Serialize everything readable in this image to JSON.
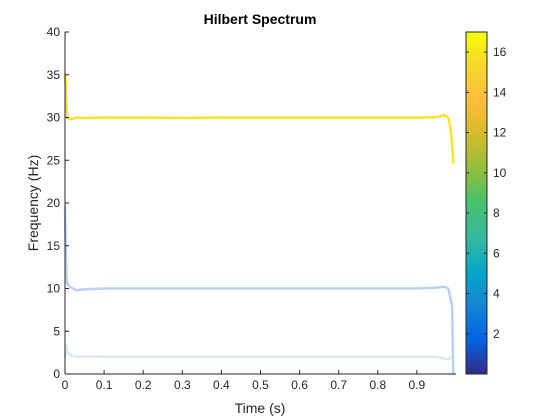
{
  "chart_data": {
    "type": "line",
    "title": "Hilbert Spectrum",
    "xlabel": "Time (s)",
    "ylabel": "Frequency (Hz)",
    "xlim": [
      0,
      1.0
    ],
    "ylim": [
      0,
      40
    ],
    "xticks": [
      "0",
      "0.1",
      "0.2",
      "0.3",
      "0.4",
      "0.5",
      "0.6",
      "0.7",
      "0.8",
      "0.9"
    ],
    "yticks": [
      "0",
      "5",
      "10",
      "15",
      "20",
      "25",
      "30",
      "35",
      "40"
    ],
    "grid": false,
    "colormap": "parula",
    "colorbar": {
      "range": [
        0,
        17
      ],
      "ticks": [
        "2",
        "4",
        "6",
        "8",
        "10",
        "12",
        "14",
        "16"
      ]
    },
    "series": [
      {
        "color": "#f9e32c",
        "amplitude": 16.8,
        "x": [
          0.0,
          0.002,
          0.004,
          0.006,
          0.01,
          0.02,
          0.03,
          0.05,
          0.1,
          0.2,
          0.3,
          0.4,
          0.5,
          0.6,
          0.7,
          0.8,
          0.9,
          0.95,
          0.97,
          0.98,
          0.985,
          0.99,
          0.993
        ],
        "y": [
          35.0,
          33.5,
          31.0,
          30.0,
          29.8,
          29.85,
          30.0,
          29.95,
          30.0,
          30.0,
          29.95,
          30.0,
          30.0,
          30.0,
          30.0,
          30.0,
          30.0,
          30.05,
          30.3,
          30.0,
          29.0,
          27.0,
          24.7
        ]
      },
      {
        "color": "#bcd0f3",
        "amplitude": 4.9,
        "x": [
          0.0,
          0.002,
          0.004,
          0.006,
          0.01,
          0.02,
          0.03,
          0.05,
          0.1,
          0.2,
          0.3,
          0.4,
          0.5,
          0.6,
          0.7,
          0.8,
          0.9,
          0.95,
          0.97,
          0.98,
          0.985,
          0.99,
          0.993
        ],
        "y": [
          19.5,
          14.0,
          11.3,
          10.6,
          10.3,
          10.0,
          9.8,
          9.9,
          10.0,
          10.0,
          10.0,
          10.0,
          10.0,
          10.0,
          10.0,
          10.0,
          10.0,
          10.1,
          10.2,
          10.0,
          9.0,
          8.0,
          0.0
        ]
      },
      {
        "color": "#dfe6f7",
        "amplitude": 1.8,
        "x": [
          0.0,
          0.003,
          0.006,
          0.01,
          0.02,
          0.03,
          0.05,
          0.1,
          0.2,
          0.3,
          0.4,
          0.5,
          0.6,
          0.7,
          0.8,
          0.9,
          0.95,
          0.97,
          0.98,
          0.985
        ],
        "y": [
          2.0,
          3.3,
          2.6,
          2.3,
          2.1,
          2.0,
          2.05,
          2.0,
          2.0,
          2.0,
          2.0,
          2.0,
          2.0,
          2.0,
          2.0,
          2.0,
          2.0,
          1.8,
          1.7,
          1.9
        ]
      }
    ]
  }
}
